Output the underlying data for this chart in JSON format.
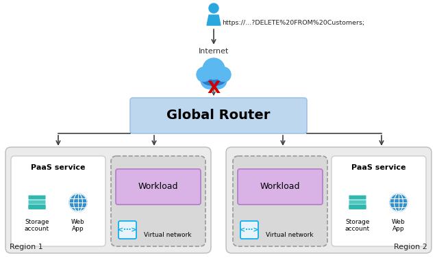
{
  "bg_color": "#ffffff",
  "title_url": "https://...?DELETE%20FROM%20Customers;",
  "internet_label": "Internet",
  "router_label": "Global Router",
  "router_box_color": "#bdd7ee",
  "router_box_edge": "#9dc3e6",
  "region1_label": "Region 1",
  "region2_label": "Region 2",
  "region_box_color": "#ebebeb",
  "region_box_edge": "#bbbbbb",
  "paas_label": "PaaS service",
  "storage_label": "Storage\naccount",
  "webapp_label": "Web\nApp",
  "workload_label": "Workload",
  "workload_box_color": "#d9b3e6",
  "workload_box_edge": "#b07cc6",
  "vnet_label": "Virtual network",
  "vnet_box_color": "#d8d8d8",
  "vnet_box_edge": "#999999",
  "paas_inner_color": "#ffffff",
  "paas_inner_edge": "#cccccc",
  "arrow_color": "#404040",
  "x_color": "#cc0000",
  "person_color": "#29a8e0",
  "cloud_color_top": "#5cb8f0",
  "cloud_color_bot": "#2e78c8",
  "storage_color1": "#2eb8b0",
  "storage_color2": "#50c8c0",
  "globe_color": "#3390d0",
  "vnet_icon_color": "#00aaee"
}
